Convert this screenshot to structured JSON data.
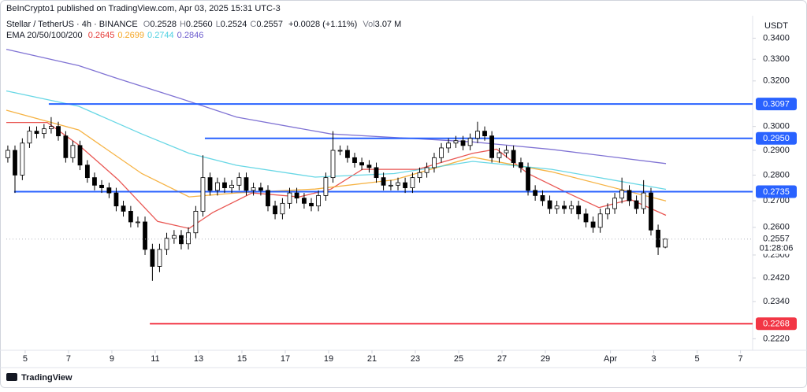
{
  "header": {
    "attribution": "BeInCrypto1 published on TradingView.com, Apr 03, 2025 15:31 UTC-3",
    "symbol": "Stellar / TetherUS · 4h · BINANCE",
    "legend": [
      {
        "key": "O",
        "value": "0.2528"
      },
      {
        "key": "H",
        "value": "0.2560"
      },
      {
        "key": "L",
        "value": "0.2524"
      },
      {
        "key": "C",
        "value": "0.2557"
      }
    ],
    "change": "+0.0028 (+1.11%)",
    "volume_key": "Vol",
    "volume": "3.07 M",
    "footer_logo": "TradingView"
  },
  "chart_data": {
    "type": "candlestick",
    "currency": "USDT",
    "log_scale": true,
    "up_color": "#ffffff",
    "down_color": "#000000",
    "x": [
      4.2,
      4.53,
      4.87,
      5.2,
      5.53,
      5.87,
      6.2,
      6.53,
      6.87,
      7.2,
      7.53,
      7.87,
      8.2,
      8.53,
      8.87,
      9.2,
      9.53,
      9.87,
      10.2,
      10.53,
      10.87,
      11.2,
      11.53,
      11.87,
      12.2,
      12.53,
      12.87,
      13.2,
      13.53,
      13.87,
      14.2,
      14.53,
      14.87,
      15.2,
      15.53,
      15.87,
      16.2,
      16.53,
      16.87,
      17.2,
      17.53,
      17.87,
      18.2,
      18.53,
      18.87,
      19.2,
      19.53,
      19.87,
      20.2,
      20.53,
      20.87,
      21.2,
      21.53,
      21.87,
      22.2,
      22.53,
      22.87,
      23.2,
      23.53,
      23.87,
      24.2,
      24.53,
      24.87,
      25.2,
      25.53,
      25.87,
      26.2,
      26.53,
      26.87,
      27.2,
      27.53,
      27.87,
      28.2,
      28.53,
      28.87,
      29.2,
      29.53,
      29.87,
      30.2,
      30.53,
      30.87,
      31.2,
      31.53,
      31.87,
      32.2,
      32.53,
      32.87,
      33.2,
      33.53,
      33.87,
      34.2,
      34.53
    ],
    "open": [
      0.287,
      0.29,
      0.28,
      0.293,
      0.298,
      0.297,
      0.299,
      0.3,
      0.296,
      0.287,
      0.292,
      0.284,
      0.279,
      0.276,
      0.275,
      0.273,
      0.268,
      0.266,
      0.262,
      0.262,
      0.252,
      0.246,
      0.252,
      0.256,
      0.257,
      0.254,
      0.258,
      0.266,
      0.279,
      0.274,
      0.277,
      0.275,
      0.276,
      0.279,
      0.274,
      0.275,
      0.274,
      0.268,
      0.265,
      0.269,
      0.273,
      0.271,
      0.269,
      0.268,
      0.272,
      0.279,
      0.29,
      0.29,
      0.287,
      0.285,
      0.284,
      0.283,
      0.279,
      0.276,
      0.276,
      0.277,
      0.275,
      0.279,
      0.281,
      0.283,
      0.287,
      0.291,
      0.293,
      0.294,
      0.292,
      0.295,
      0.298,
      0.296,
      0.287,
      0.289,
      0.29,
      0.285,
      0.283,
      0.274,
      0.272,
      0.27,
      0.267,
      0.268,
      0.267,
      0.268,
      0.265,
      0.262,
      0.26,
      0.265,
      0.267,
      0.271,
      0.274,
      0.27,
      0.267,
      0.273,
      0.259,
      0.2528
    ],
    "high": [
      0.292,
      0.292,
      0.295,
      0.3,
      0.3,
      0.301,
      0.304,
      0.302,
      0.298,
      0.294,
      0.294,
      0.286,
      0.281,
      0.278,
      0.277,
      0.275,
      0.27,
      0.268,
      0.264,
      0.264,
      0.254,
      0.254,
      0.258,
      0.259,
      0.259,
      0.26,
      0.268,
      0.288,
      0.281,
      0.279,
      0.279,
      0.278,
      0.281,
      0.281,
      0.277,
      0.277,
      0.276,
      0.27,
      0.271,
      0.275,
      0.275,
      0.273,
      0.271,
      0.274,
      0.281,
      0.298,
      0.292,
      0.292,
      0.289,
      0.287,
      0.286,
      0.285,
      0.281,
      0.278,
      0.279,
      0.279,
      0.281,
      0.283,
      0.285,
      0.289,
      0.293,
      0.295,
      0.296,
      0.296,
      0.297,
      0.302,
      0.3,
      0.298,
      0.291,
      0.292,
      0.292,
      0.287,
      0.285,
      0.276,
      0.274,
      0.272,
      0.27,
      0.27,
      0.27,
      0.27,
      0.267,
      0.264,
      0.267,
      0.269,
      0.273,
      0.279,
      0.276,
      0.272,
      0.278,
      0.275,
      0.261,
      0.256
    ],
    "low": [
      0.285,
      0.273,
      0.278,
      0.291,
      0.295,
      0.295,
      0.297,
      0.294,
      0.285,
      0.285,
      0.282,
      0.277,
      0.274,
      0.273,
      0.271,
      0.266,
      0.264,
      0.26,
      0.26,
      0.25,
      0.241,
      0.244,
      0.25,
      0.254,
      0.252,
      0.252,
      0.256,
      0.264,
      0.272,
      0.272,
      0.273,
      0.273,
      0.274,
      0.272,
      0.272,
      0.272,
      0.266,
      0.263,
      0.263,
      0.267,
      0.269,
      0.267,
      0.266,
      0.266,
      0.27,
      0.277,
      0.288,
      0.285,
      0.283,
      0.282,
      0.281,
      0.277,
      0.274,
      0.274,
      0.274,
      0.273,
      0.273,
      0.277,
      0.279,
      0.281,
      0.285,
      0.289,
      0.291,
      0.29,
      0.29,
      0.293,
      0.294,
      0.285,
      0.285,
      0.287,
      0.283,
      0.281,
      0.272,
      0.27,
      0.268,
      0.265,
      0.265,
      0.265,
      0.265,
      0.263,
      0.26,
      0.258,
      0.258,
      0.263,
      0.265,
      0.269,
      0.268,
      0.265,
      0.265,
      0.257,
      0.25,
      0.2524
    ],
    "close": [
      0.29,
      0.28,
      0.293,
      0.298,
      0.297,
      0.299,
      0.3,
      0.296,
      0.287,
      0.292,
      0.284,
      0.279,
      0.276,
      0.275,
      0.273,
      0.268,
      0.266,
      0.262,
      0.262,
      0.252,
      0.246,
      0.252,
      0.256,
      0.257,
      0.254,
      0.258,
      0.266,
      0.279,
      0.274,
      0.277,
      0.275,
      0.276,
      0.279,
      0.274,
      0.275,
      0.274,
      0.268,
      0.265,
      0.269,
      0.273,
      0.271,
      0.269,
      0.268,
      0.272,
      0.279,
      0.29,
      0.29,
      0.287,
      0.285,
      0.284,
      0.283,
      0.279,
      0.276,
      0.276,
      0.277,
      0.275,
      0.279,
      0.281,
      0.283,
      0.287,
      0.291,
      0.293,
      0.294,
      0.292,
      0.295,
      0.298,
      0.296,
      0.287,
      0.289,
      0.29,
      0.285,
      0.283,
      0.274,
      0.272,
      0.27,
      0.267,
      0.268,
      0.267,
      0.268,
      0.265,
      0.262,
      0.26,
      0.265,
      0.267,
      0.271,
      0.274,
      0.27,
      0.267,
      0.273,
      0.259,
      0.2528,
      0.2557
    ],
    "countdown": "01:28:06",
    "xlim": [
      4.13,
      38.56
    ],
    "xticks": [
      5,
      7,
      9,
      11,
      13,
      15,
      17,
      19,
      21,
      23,
      25,
      27,
      29,
      {
        "value": 32,
        "label": "Apr"
      },
      {
        "value": 34,
        "label": "3"
      },
      {
        "value": 36,
        "label": "5"
      },
      {
        "value": 38,
        "label": "7"
      }
    ],
    "ylim": [
      0.2184,
      0.351
    ],
    "yticks": [
      {
        "value": 0.34,
        "label": "0.3400"
      },
      {
        "value": 0.33,
        "label": "0.3300"
      },
      {
        "value": 0.32,
        "label": "0.3200"
      },
      {
        "value": 0.3,
        "label": "0.3000"
      },
      {
        "value": 0.29,
        "label": "0.2900"
      },
      {
        "value": 0.28,
        "label": "0.2800"
      },
      {
        "value": 0.27,
        "label": "0.2700"
      },
      {
        "value": 0.26,
        "label": "0.2600"
      },
      {
        "value": 0.25,
        "label": "0.2500"
      },
      {
        "value": 0.242,
        "label": "0.2420"
      },
      {
        "value": 0.234,
        "label": "0.2340"
      },
      {
        "value": 0.222,
        "label": "0.2220"
      }
    ],
    "ema": {
      "label": "EMA 20/50/100/200",
      "series": [
        {
          "color": "#e53935",
          "x": [
            4.13,
            6.02,
            7.47,
            9.29,
            11.11,
            12.56,
            13.65,
            15.47,
            17.65,
            19.11,
            20.56,
            23.11,
            25.65,
            26.75,
            28.2,
            30.02,
            31.47,
            32.93,
            34.56
          ],
          "values": [
            0.3017,
            0.3017,
            0.2922,
            0.2782,
            0.2622,
            0.2596,
            0.2655,
            0.273,
            0.2715,
            0.2745,
            0.2823,
            0.2823,
            0.2888,
            0.2905,
            0.2806,
            0.273,
            0.2674,
            0.2705,
            0.2645
          ]
        },
        {
          "color": "#f5a623",
          "x": [
            4.13,
            7.47,
            10.38,
            12.56,
            14.75,
            18.38,
            22.02,
            25.65,
            29.29,
            34.56
          ],
          "values": [
            0.307,
            0.2985,
            0.2806,
            0.2715,
            0.273,
            0.2745,
            0.2781,
            0.2872,
            0.2813,
            0.2699
          ]
        },
        {
          "color": "#4dd0e1",
          "x": [
            4.13,
            7.47,
            10.38,
            12.56,
            14.75,
            18.38,
            22.02,
            25.65,
            29.29,
            34.56
          ],
          "values": [
            0.3155,
            0.3087,
            0.2968,
            0.2888,
            0.2839,
            0.2792,
            0.2806,
            0.2855,
            0.2823,
            0.2744
          ]
        },
        {
          "color": "#6a5acd",
          "x": [
            4.13,
            7.47,
            9.29,
            12.2,
            14.75,
            19.11,
            22.75,
            25.65,
            29.29,
            34.56
          ],
          "values": [
            0.3347,
            0.327,
            0.321,
            0.312,
            0.304,
            0.2968,
            0.295,
            0.2935,
            0.2904,
            0.2846
          ]
        }
      ]
    },
    "levels": [
      {
        "price": 0.3097,
        "start": 6.09,
        "color": "#2962ff"
      },
      {
        "price": {
          "value": 0.295,
          "label": "0.2950"
        },
        "start": 13.29,
        "color": "#2962ff"
      },
      {
        "price": 0.2735,
        "start": 4.49,
        "color": "#2962ff"
      },
      {
        "price": 0.2268,
        "start": 10.75,
        "color": "#f23645"
      }
    ]
  }
}
